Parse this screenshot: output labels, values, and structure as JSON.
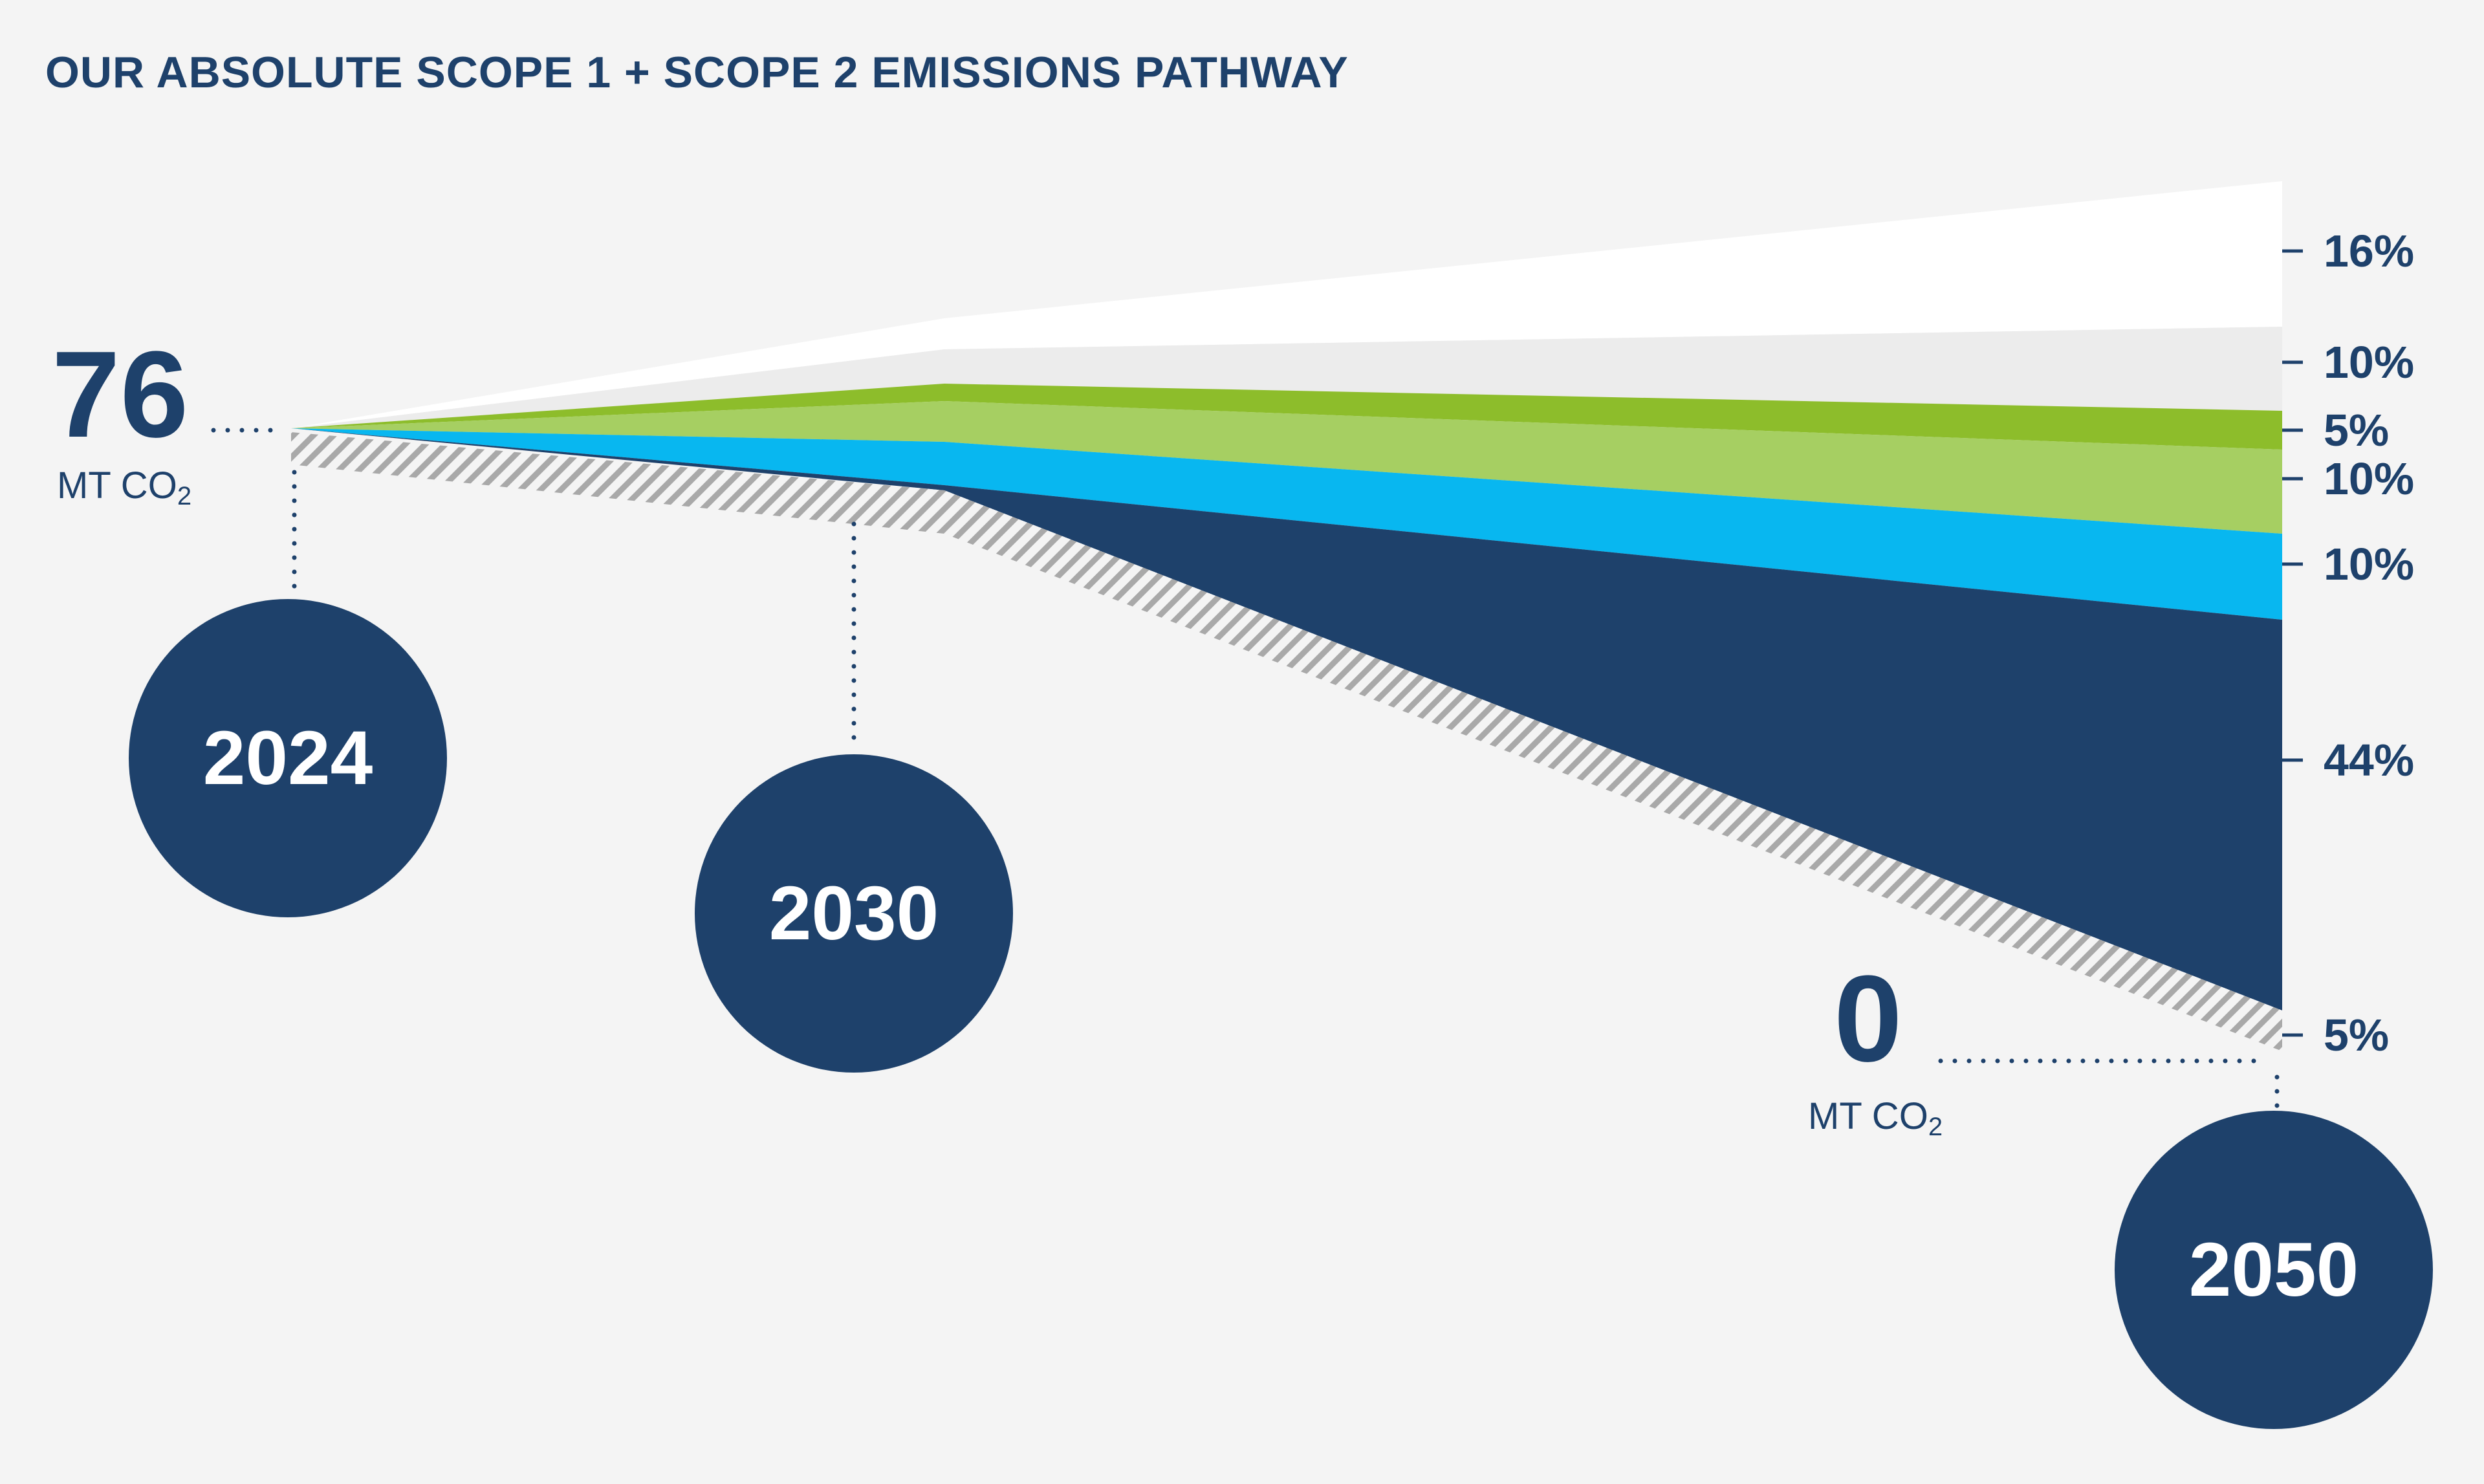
{
  "title": "OUR ABSOLUTE SCOPE 1 + SCOPE 2 EMISSIONS PATHWAY",
  "colors": {
    "navy": "#1e416b",
    "cyan": "#08b7f0",
    "light_green": "#a6cf62",
    "green": "#8dbd2b",
    "light_gray": "#ececec",
    "white": "#ffffff",
    "hatch": "#a9a9a9",
    "background": "#f4f4f4"
  },
  "start_value": {
    "value": "76",
    "unit": "MT CO",
    "unit_sub": "2"
  },
  "end_value": {
    "value": "0",
    "unit": "MT CO",
    "unit_sub": "2"
  },
  "years": [
    "2024",
    "2030",
    "2050"
  ],
  "chart_data": {
    "type": "area",
    "title": "OUR ABSOLUTE SCOPE 1 + SCOPE 2 EMISSIONS PATHWAY",
    "x": [
      "2024",
      "2030",
      "2050"
    ],
    "start_emissions": "76 MT CO2",
    "end_emissions": "0 MT CO2",
    "band_shares_at_2050": [
      {
        "label": "16%",
        "value": 16,
        "color": "#ffffff"
      },
      {
        "label": "10%",
        "value": 10,
        "color": "#ececec"
      },
      {
        "label": "5%",
        "value": 5,
        "color": "#8dbd2b"
      },
      {
        "label": "10%",
        "value": 10,
        "color": "#a6cf62"
      },
      {
        "label": "10%",
        "value": 10,
        "color": "#08b7f0"
      },
      {
        "label": "44%",
        "value": 44,
        "color": "#1e416b"
      },
      {
        "label": "5%",
        "value": 5,
        "color": "#a9a9a9",
        "pattern": "hatched"
      }
    ],
    "legend": "none"
  }
}
